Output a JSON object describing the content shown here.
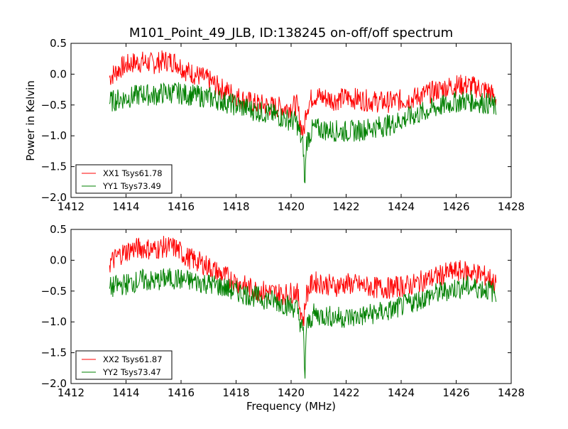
{
  "figure": {
    "title": "M101_Point_49_JLB, ID:138245 on-off/off spectrum",
    "xlabel": "Frequency (MHz)",
    "ylabel": "Power in Kelvin"
  },
  "colors": {
    "xx": "#ff0000",
    "yy": "#008000",
    "axes": "#000000",
    "background": "#ffffff"
  },
  "chart_data": [
    {
      "type": "line",
      "xlabel": "",
      "ylabel": "Power in Kelvin",
      "xlim": [
        1412,
        1428
      ],
      "ylim": [
        -2.0,
        0.5
      ],
      "xticks": [
        1412,
        1414,
        1416,
        1418,
        1420,
        1422,
        1424,
        1426,
        1428
      ],
      "yticks": [
        0.5,
        0.0,
        -0.5,
        -1.0,
        -1.5,
        -2.0
      ],
      "xtick_labels": [
        "1412",
        "1414",
        "1416",
        "1418",
        "1420",
        "1422",
        "1424",
        "1426",
        "1428"
      ],
      "ytick_labels": [
        "0.5",
        "0.0",
        "−0.5",
        "−1.0",
        "−1.5",
        "−2.0"
      ],
      "legend_position": "lower-left",
      "series": [
        {
          "name": "XX1 Tsys61.78",
          "color": "#ff0000",
          "x": [
            1413.4,
            1413.8,
            1414.2,
            1414.6,
            1415.0,
            1415.4,
            1415.8,
            1416.2,
            1416.6,
            1417.0,
            1417.4,
            1417.8,
            1418.2,
            1418.6,
            1419.0,
            1419.4,
            1419.8,
            1420.2,
            1420.45,
            1420.55,
            1420.8,
            1421.2,
            1421.6,
            1422.0,
            1422.4,
            1422.8,
            1423.2,
            1423.6,
            1424.0,
            1424.4,
            1424.8,
            1425.2,
            1425.6,
            1426.0,
            1426.4,
            1426.8,
            1427.2,
            1427.45
          ],
          "y": [
            -0.05,
            0.1,
            0.18,
            0.2,
            0.17,
            0.22,
            0.2,
            0.05,
            -0.02,
            -0.1,
            -0.22,
            -0.3,
            -0.4,
            -0.47,
            -0.5,
            -0.53,
            -0.55,
            -0.5,
            -1.0,
            -0.55,
            -0.35,
            -0.38,
            -0.42,
            -0.38,
            -0.4,
            -0.43,
            -0.45,
            -0.45,
            -0.42,
            -0.4,
            -0.33,
            -0.28,
            -0.22,
            -0.18,
            -0.18,
            -0.22,
            -0.28,
            -0.4
          ]
        },
        {
          "name": "YY1 Tsys73.49",
          "color": "#008000",
          "x": [
            1413.4,
            1413.8,
            1414.2,
            1414.6,
            1415.0,
            1415.4,
            1415.8,
            1416.2,
            1416.6,
            1417.0,
            1417.4,
            1417.8,
            1418.2,
            1418.6,
            1419.0,
            1419.4,
            1419.8,
            1420.2,
            1420.45,
            1420.5,
            1420.55,
            1420.8,
            1421.2,
            1421.6,
            1422.0,
            1422.4,
            1422.8,
            1423.2,
            1423.6,
            1424.0,
            1424.4,
            1424.8,
            1425.2,
            1425.6,
            1426.0,
            1426.4,
            1426.8,
            1427.2,
            1427.45
          ],
          "y": [
            -0.45,
            -0.4,
            -0.37,
            -0.32,
            -0.35,
            -0.3,
            -0.3,
            -0.33,
            -0.35,
            -0.38,
            -0.42,
            -0.48,
            -0.53,
            -0.58,
            -0.62,
            -0.66,
            -0.72,
            -0.78,
            -1.2,
            -1.9,
            -1.1,
            -0.88,
            -0.9,
            -0.92,
            -0.93,
            -0.92,
            -0.88,
            -0.85,
            -0.82,
            -0.75,
            -0.68,
            -0.62,
            -0.55,
            -0.5,
            -0.45,
            -0.43,
            -0.45,
            -0.48,
            -0.55
          ]
        }
      ]
    },
    {
      "type": "line",
      "xlabel": "Frequency (MHz)",
      "ylabel": "",
      "xlim": [
        1412,
        1428
      ],
      "ylim": [
        -2.0,
        0.5
      ],
      "xticks": [
        1412,
        1414,
        1416,
        1418,
        1420,
        1422,
        1424,
        1426,
        1428
      ],
      "yticks": [
        0.5,
        0.0,
        -0.5,
        -1.0,
        -1.5,
        -2.0
      ],
      "xtick_labels": [
        "1412",
        "1414",
        "1416",
        "1418",
        "1420",
        "1422",
        "1424",
        "1426",
        "1428"
      ],
      "ytick_labels": [
        "0.5",
        "0.0",
        "−0.5",
        "−1.0",
        "−1.5",
        "−2.0"
      ],
      "legend_position": "lower-left",
      "series": [
        {
          "name": "XX2 Tsys61.87",
          "color": "#ff0000",
          "x": [
            1413.4,
            1413.8,
            1414.2,
            1414.6,
            1415.0,
            1415.4,
            1415.8,
            1416.2,
            1416.6,
            1417.0,
            1417.4,
            1417.8,
            1418.2,
            1418.6,
            1419.0,
            1419.4,
            1419.8,
            1420.2,
            1420.45,
            1420.55,
            1420.8,
            1421.2,
            1421.6,
            1422.0,
            1422.4,
            1422.8,
            1423.2,
            1423.6,
            1424.0,
            1424.4,
            1424.8,
            1425.2,
            1425.6,
            1426.0,
            1426.4,
            1426.8,
            1427.2,
            1427.45
          ],
          "y": [
            -0.05,
            0.1,
            0.18,
            0.2,
            0.17,
            0.22,
            0.2,
            0.05,
            -0.02,
            -0.1,
            -0.22,
            -0.3,
            -0.4,
            -0.47,
            -0.5,
            -0.53,
            -0.55,
            -0.5,
            -1.0,
            -0.55,
            -0.35,
            -0.38,
            -0.42,
            -0.38,
            -0.4,
            -0.43,
            -0.45,
            -0.45,
            -0.42,
            -0.4,
            -0.33,
            -0.28,
            -0.22,
            -0.18,
            -0.18,
            -0.22,
            -0.28,
            -0.4
          ]
        },
        {
          "name": "YY2 Tsys73.47",
          "color": "#008000",
          "x": [
            1413.4,
            1413.8,
            1414.2,
            1414.6,
            1415.0,
            1415.4,
            1415.8,
            1416.2,
            1416.6,
            1417.0,
            1417.4,
            1417.8,
            1418.2,
            1418.6,
            1419.0,
            1419.4,
            1419.8,
            1420.2,
            1420.45,
            1420.5,
            1420.55,
            1420.8,
            1421.2,
            1421.6,
            1422.0,
            1422.4,
            1422.8,
            1423.2,
            1423.6,
            1424.0,
            1424.4,
            1424.8,
            1425.2,
            1425.6,
            1426.0,
            1426.4,
            1426.8,
            1427.2,
            1427.45
          ],
          "y": [
            -0.45,
            -0.4,
            -0.37,
            -0.32,
            -0.35,
            -0.3,
            -0.3,
            -0.33,
            -0.35,
            -0.38,
            -0.42,
            -0.48,
            -0.53,
            -0.58,
            -0.62,
            -0.66,
            -0.72,
            -0.78,
            -1.2,
            -1.92,
            -1.1,
            -0.88,
            -0.9,
            -0.92,
            -0.93,
            -0.92,
            -0.88,
            -0.85,
            -0.82,
            -0.75,
            -0.68,
            -0.62,
            -0.55,
            -0.5,
            -0.45,
            -0.43,
            -0.45,
            -0.48,
            -0.55
          ]
        }
      ]
    }
  ]
}
